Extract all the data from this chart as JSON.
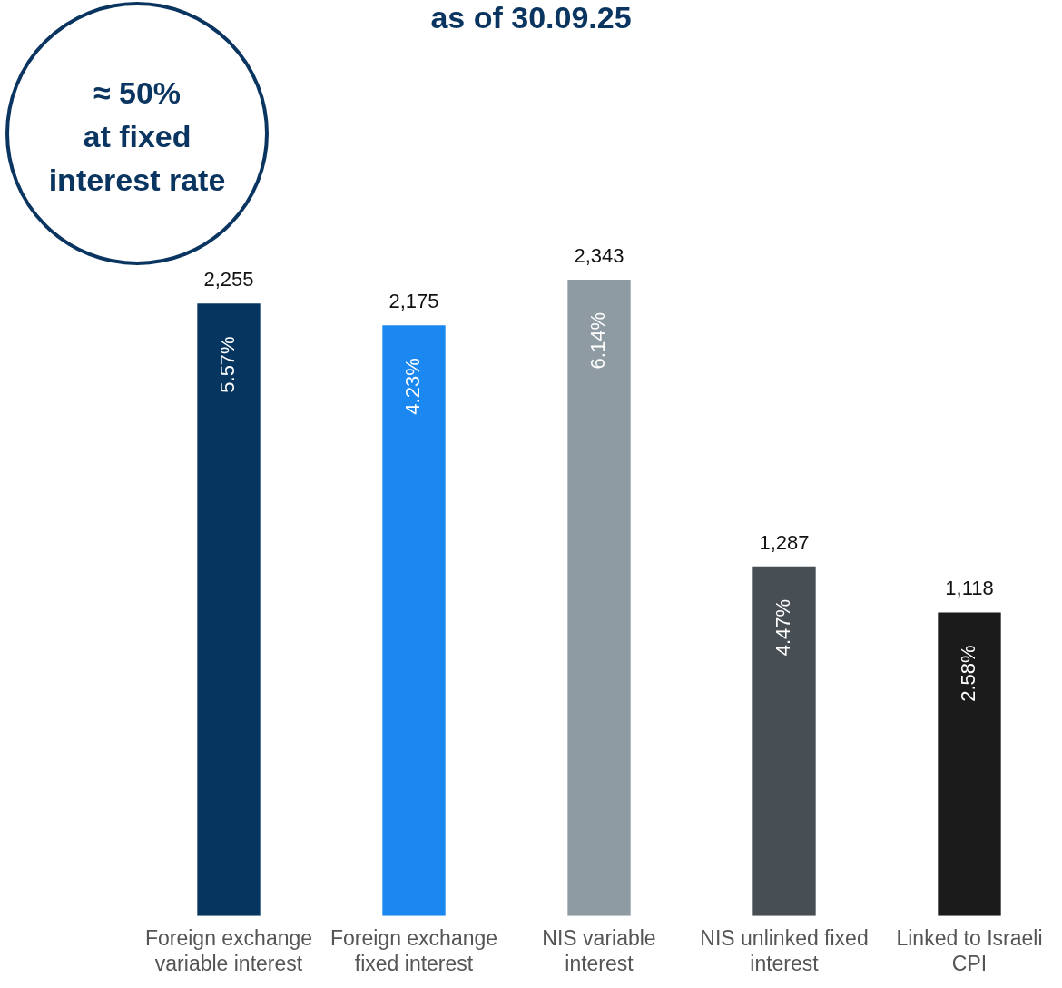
{
  "chart_data": {
    "type": "bar",
    "title": "as of 30.09.25",
    "categories": [
      "Foreign exchange variable interest",
      "Foreign exchange fixed interest",
      "NIS variable interest",
      "NIS unlinked fixed interest",
      "Linked to Israeli CPI"
    ],
    "values": [
      2255,
      2175,
      2343,
      1287,
      1118
    ],
    "colors": [
      "#06365f",
      "#1b87f0",
      "#8f9ba3",
      "#474e54",
      "#1b1b1b"
    ],
    "value_labels": [
      "2,255",
      "2,175",
      "2,343",
      "1,287",
      "1,118"
    ],
    "grid": false,
    "legend": false,
    "annotations": [
      "≈ 50%\nat fixed\ninterest rate",
      "5.57%",
      "4.23%",
      "6.14%",
      "4.47%",
      "2.58%"
    ]
  }
}
